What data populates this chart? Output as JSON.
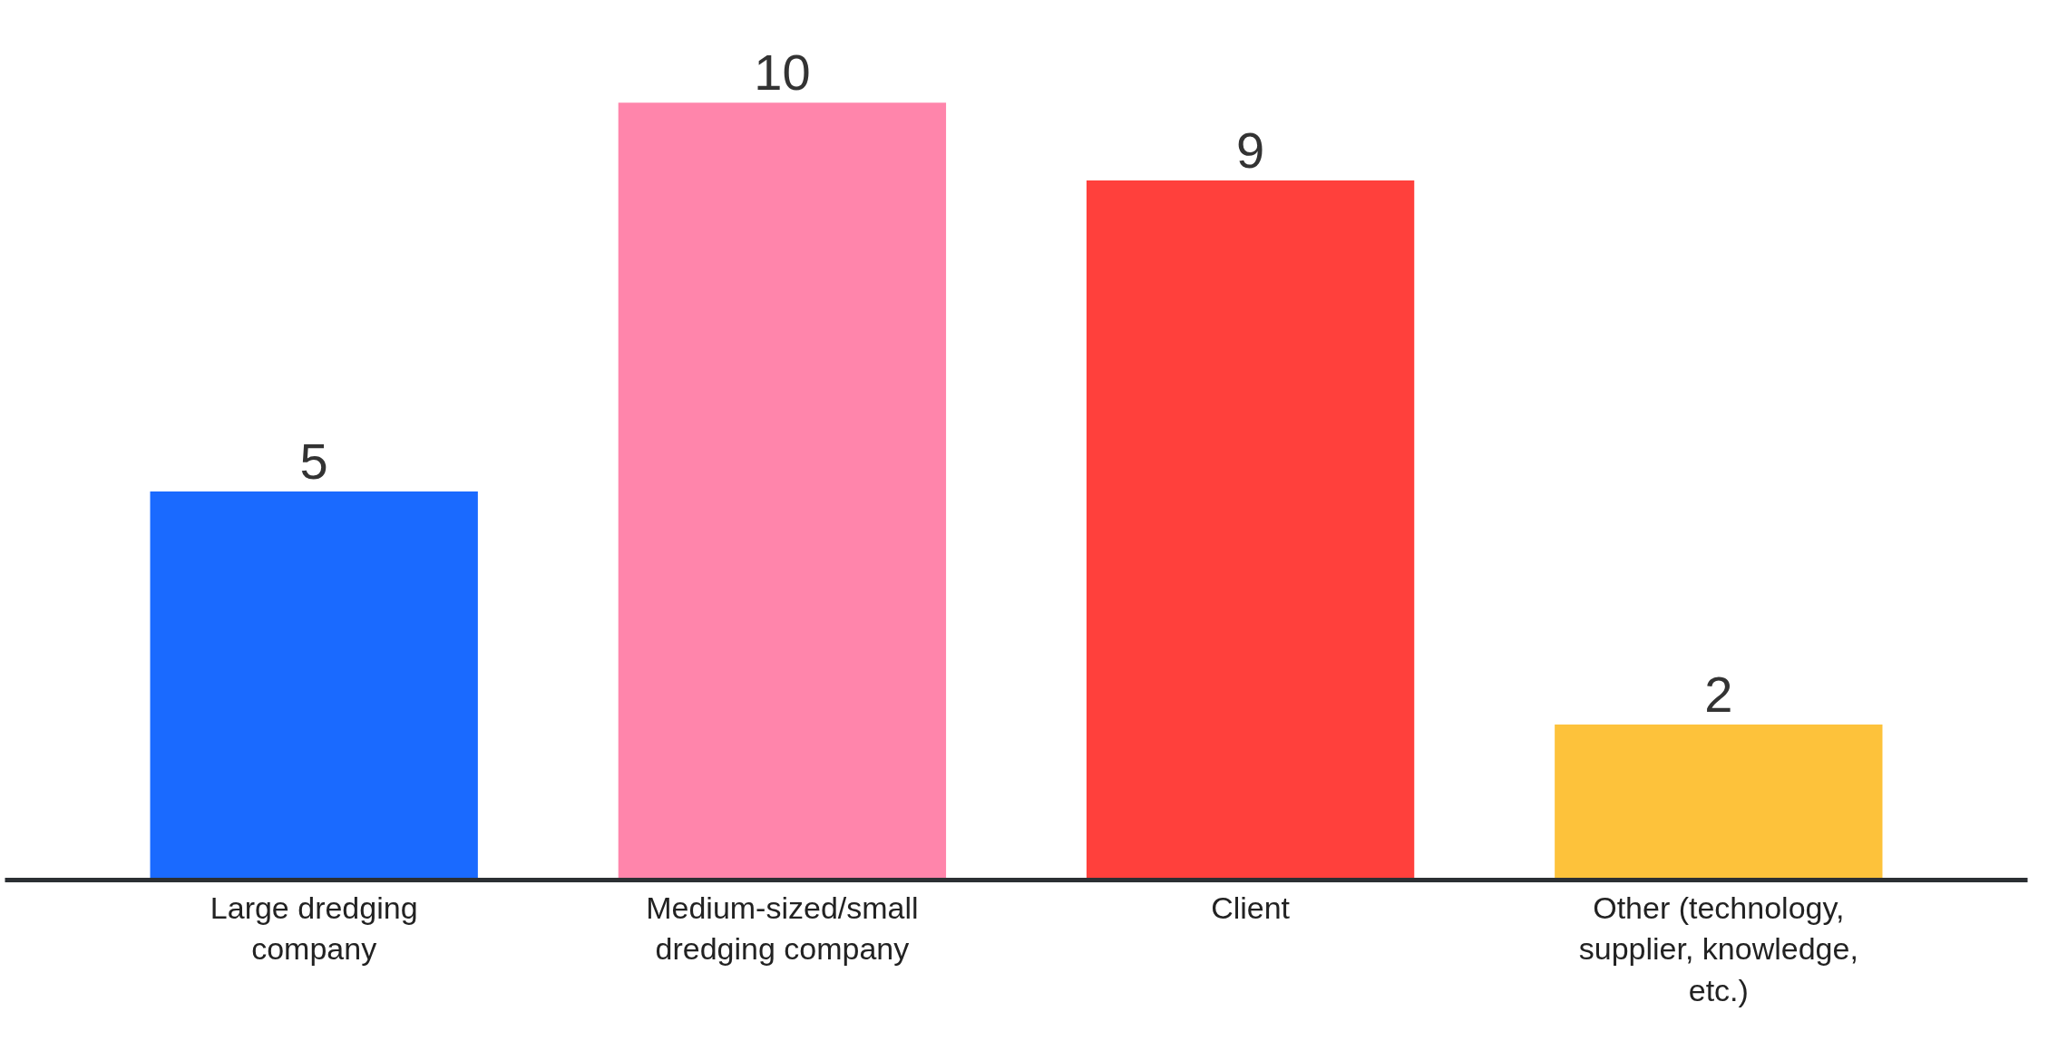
{
  "chart_data": {
    "type": "bar",
    "categories": [
      "Large dredging company",
      "Medium-sized/small dredging company",
      "Client",
      "Other (technology, supplier, knowledge, etc.)"
    ],
    "values": [
      5,
      10,
      9,
      2
    ],
    "colors": [
      "#1a6aff",
      "#ff85ab",
      "#ff403c",
      "#fdc23b"
    ],
    "data_labels": true,
    "grid": false
  }
}
